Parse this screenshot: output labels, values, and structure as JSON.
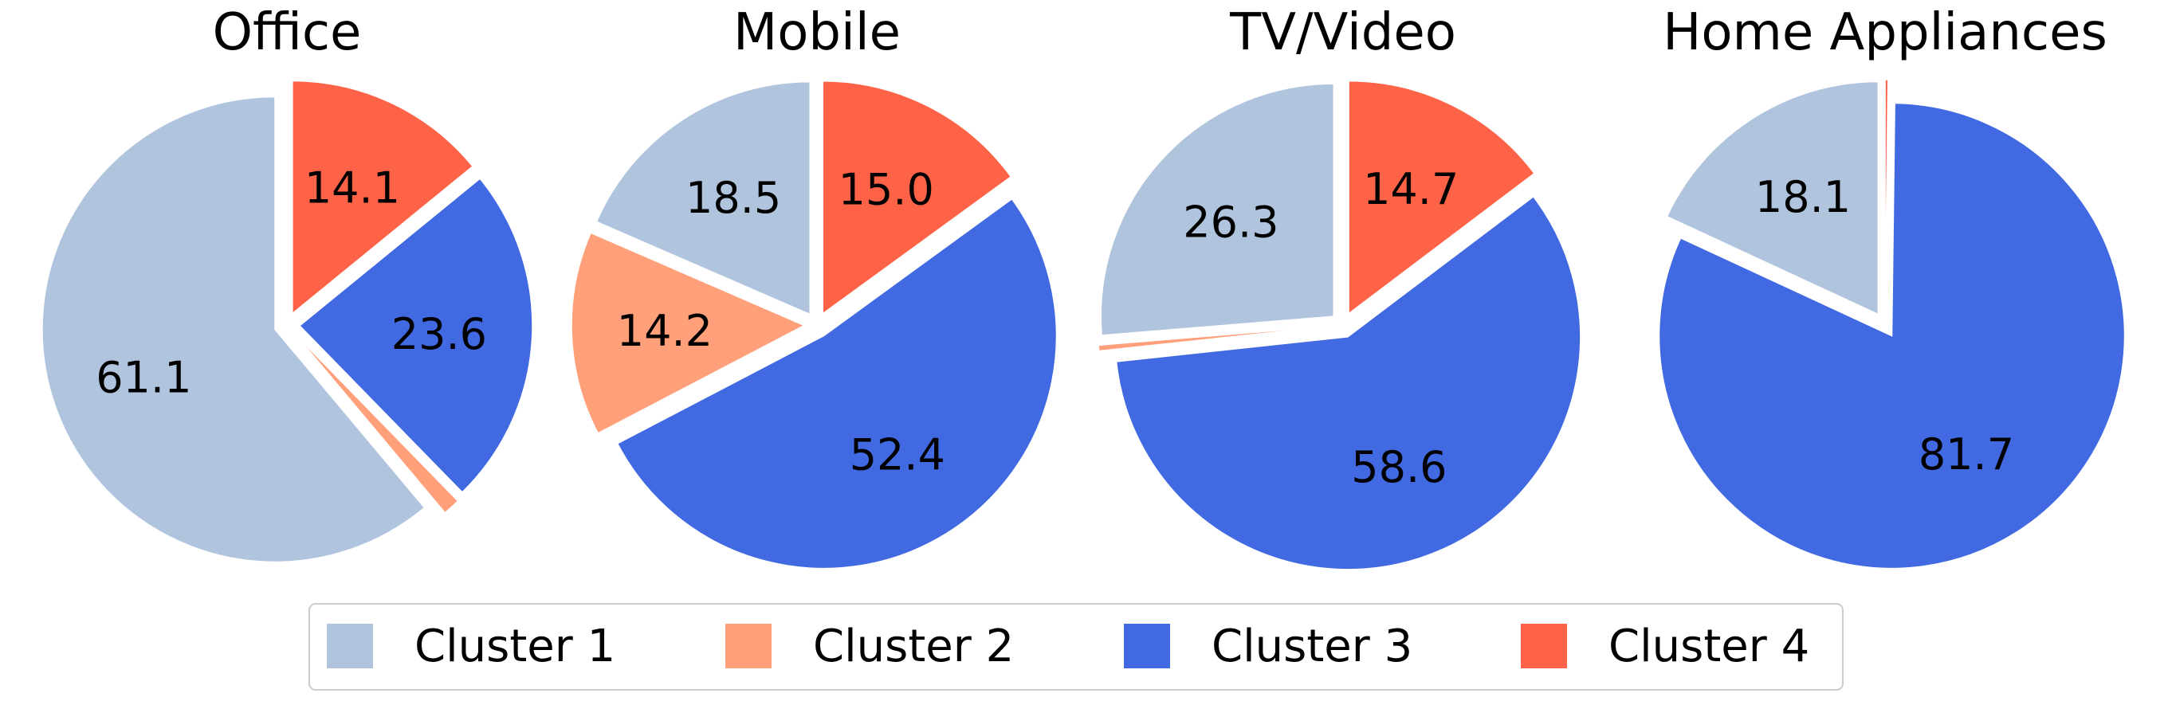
{
  "chart_data": [
    {
      "type": "pie",
      "title": "Office",
      "labels": [
        "Cluster 1",
        "Cluster 2",
        "Cluster 3",
        "Cluster 4"
      ],
      "values": [
        61.1,
        1.2,
        23.6,
        14.1
      ],
      "value_labels": [
        "61.1",
        "",
        "23.6",
        "14.1"
      ]
    },
    {
      "type": "pie",
      "title": "Mobile",
      "labels": [
        "Cluster 1",
        "Cluster 2",
        "Cluster 3",
        "Cluster 4"
      ],
      "values": [
        18.5,
        14.2,
        52.4,
        15.0
      ],
      "value_labels": [
        "18.5",
        "14.2",
        "52.4",
        "15.0"
      ]
    },
    {
      "type": "pie",
      "title": "TV/Video",
      "labels": [
        "Cluster 1",
        "Cluster 2",
        "Cluster 3",
        "Cluster 4"
      ],
      "values": [
        26.3,
        0.4,
        58.6,
        14.7
      ],
      "value_labels": [
        "26.3",
        "",
        "58.6",
        "14.7"
      ]
    },
    {
      "type": "pie",
      "title": "Home Appliances",
      "labels": [
        "Cluster 1",
        "Cluster 2",
        "Cluster 3",
        "Cluster 4"
      ],
      "values": [
        18.1,
        0.0,
        81.7,
        0.2
      ],
      "value_labels": [
        "18.1",
        "",
        "81.7",
        ""
      ]
    }
  ],
  "legend": {
    "placement": "bottom-center",
    "entries": [
      {
        "label": "Cluster 1",
        "color": "#b0c4de"
      },
      {
        "label": "Cluster 2",
        "color": "#ffa07a"
      },
      {
        "label": "Cluster 3",
        "color": "#4169e1"
      },
      {
        "label": "Cluster 4",
        "color": "#ff6347"
      }
    ]
  }
}
